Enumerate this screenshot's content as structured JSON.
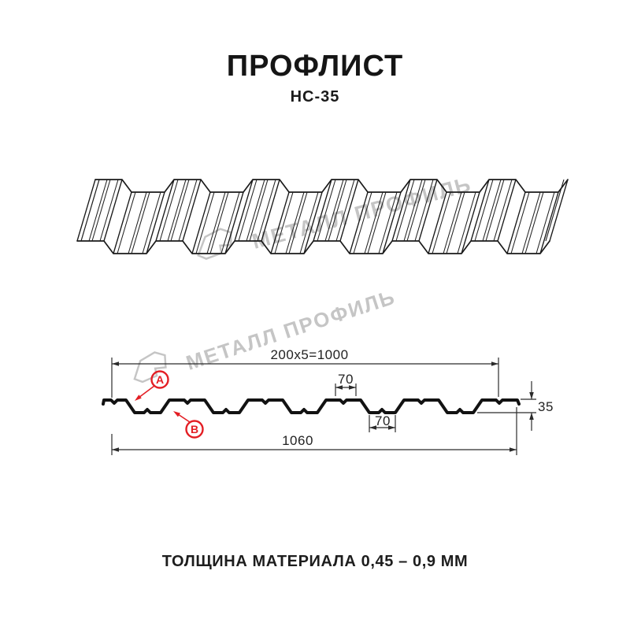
{
  "header": {
    "title": "ПРОФЛИСТ",
    "subtitle": "НС-35"
  },
  "watermark": {
    "text": "МЕТАЛЛ ПРОФИЛЬ",
    "logo": "metall-profil-logo",
    "color": "#c5c5c5"
  },
  "diagram": {
    "profile_name": "НС-35",
    "dimensions": {
      "useful_width": "200x5=1000",
      "crest_top_width": "70",
      "valley_width": "70",
      "height": "35",
      "full_width": "1060"
    },
    "callouts": {
      "a": "А",
      "b": "В"
    },
    "colors": {
      "line": "#1a1a1a",
      "profile": "#121212",
      "dimension": "#2b2b2b",
      "callout_red": "#e31e24"
    }
  },
  "footer": {
    "thickness_note": "ТОЛЩИНА МАТЕРИАЛА 0,45 – 0,9 ММ"
  }
}
